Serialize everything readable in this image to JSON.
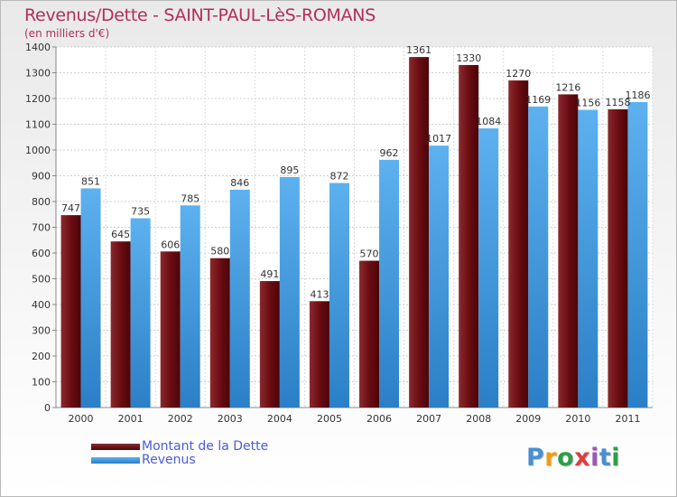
{
  "title": "Revenus/Dette - SAINT-PAUL-LèS-ROMANS",
  "subtitle": "(en milliers d'€)",
  "logo": {
    "text": "Proxiti",
    "letter_colors": [
      "#4a8fd0",
      "#f39c12",
      "#2e9e4a",
      "#e23b3b",
      "#9b59b6",
      "#4a8fd0",
      "#2e9e4a"
    ]
  },
  "colors": {
    "dette": "#6b0d12",
    "revenus": "#3a94de",
    "title": "#b42d5a",
    "legend_text": "#4a5bdc"
  },
  "chart_data": {
    "type": "bar",
    "categories": [
      "2000",
      "2001",
      "2002",
      "2003",
      "2004",
      "2005",
      "2006",
      "2007",
      "2008",
      "2009",
      "2010",
      "2011"
    ],
    "series": [
      {
        "name": "Montant de la Dette",
        "values": [
          747,
          645,
          606,
          580,
          491,
          413,
          570,
          1361,
          1330,
          1270,
          1216,
          1158
        ]
      },
      {
        "name": "Revenus",
        "values": [
          851,
          735,
          785,
          846,
          895,
          872,
          962,
          1017,
          1084,
          1169,
          1156,
          1186
        ]
      }
    ],
    "ylim": [
      0,
      1400
    ],
    "yticks": [
      0,
      100,
      200,
      300,
      400,
      500,
      600,
      700,
      800,
      900,
      1000,
      1100,
      1200,
      1300,
      1400
    ],
    "grid": true,
    "legend_position": "bottom-left"
  }
}
